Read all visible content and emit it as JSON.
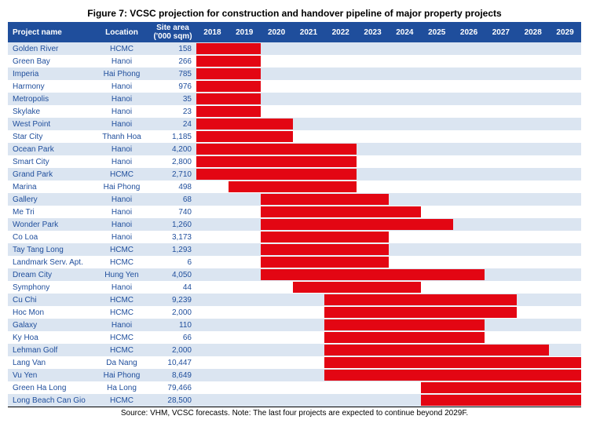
{
  "title": "Figure 7: VCSC projection for construction and handover pipeline of major property projects",
  "header": {
    "name": "Project name",
    "location": "Location",
    "area": "Site area ('000 sqm)"
  },
  "timeline": {
    "start": 2018,
    "end": 2029,
    "years": [
      2018,
      2019,
      2020,
      2021,
      2022,
      2023,
      2024,
      2025,
      2026,
      2027,
      2028,
      2029
    ]
  },
  "colors": {
    "header_bg": "#1f4e9c",
    "header_text": "#ffffff",
    "row_even_bg": "#dbe5f1",
    "row_odd_bg": "#ffffff",
    "bar_fill": "#e30613",
    "text": "#1f4e9c"
  },
  "projects": [
    {
      "name": "Golden River",
      "location": "HCMC",
      "area": "158",
      "start": 2018.0,
      "end": 2020.0
    },
    {
      "name": "Green Bay",
      "location": "Hanoi",
      "area": "266",
      "start": 2018.0,
      "end": 2020.0
    },
    {
      "name": "Imperia",
      "location": "Hai Phong",
      "area": "785",
      "start": 2018.0,
      "end": 2020.0
    },
    {
      "name": "Harmony",
      "location": "Hanoi",
      "area": "976",
      "start": 2018.0,
      "end": 2020.0
    },
    {
      "name": "Metropolis",
      "location": "Hanoi",
      "area": "35",
      "start": 2018.0,
      "end": 2020.0
    },
    {
      "name": "Skylake",
      "location": "Hanoi",
      "area": "23",
      "start": 2018.0,
      "end": 2020.0
    },
    {
      "name": "West Point",
      "location": "Hanoi",
      "area": "24",
      "start": 2018.0,
      "end": 2021.0
    },
    {
      "name": "Star City",
      "location": "Thanh Hoa",
      "area": "1,185",
      "start": 2018.0,
      "end": 2021.0
    },
    {
      "name": "Ocean Park",
      "location": "Hanoi",
      "area": "4,200",
      "start": 2018.0,
      "end": 2023.0
    },
    {
      "name": "Smart City",
      "location": "Hanoi",
      "area": "2,800",
      "start": 2018.0,
      "end": 2023.0
    },
    {
      "name": "Grand Park",
      "location": "HCMC",
      "area": "2,710",
      "start": 2018.0,
      "end": 2023.0
    },
    {
      "name": "Marina",
      "location": "Hai Phong",
      "area": "498",
      "start": 2019.0,
      "end": 2023.0
    },
    {
      "name": "Gallery",
      "location": "Hanoi",
      "area": "68",
      "start": 2020.0,
      "end": 2024.0
    },
    {
      "name": "Me Tri",
      "location": "Hanoi",
      "area": "740",
      "start": 2020.0,
      "end": 2025.0
    },
    {
      "name": "Wonder Park",
      "location": "Hanoi",
      "area": "1,260",
      "start": 2020.0,
      "end": 2026.0
    },
    {
      "name": "Co Loa",
      "location": "Hanoi",
      "area": "3,173",
      "start": 2020.0,
      "end": 2024.0
    },
    {
      "name": "Tay Tang Long",
      "location": "HCMC",
      "area": "1,293",
      "start": 2020.0,
      "end": 2024.0
    },
    {
      "name": "Landmark Serv. Apt.",
      "location": "HCMC",
      "area": "6",
      "start": 2020.0,
      "end": 2024.0
    },
    {
      "name": "Dream City",
      "location": "Hung Yen",
      "area": "4,050",
      "start": 2020.0,
      "end": 2027.0
    },
    {
      "name": "Symphony",
      "location": "Hanoi",
      "area": "44",
      "start": 2021.0,
      "end": 2025.0
    },
    {
      "name": "Cu Chi",
      "location": "HCMC",
      "area": "9,239",
      "start": 2022.0,
      "end": 2028.0
    },
    {
      "name": "Hoc Mon",
      "location": "HCMC",
      "area": "2,000",
      "start": 2022.0,
      "end": 2028.0
    },
    {
      "name": "Galaxy",
      "location": "Hanoi",
      "area": "110",
      "start": 2022.0,
      "end": 2027.0
    },
    {
      "name": "Ky Hoa",
      "location": "HCMC",
      "area": "66",
      "start": 2022.0,
      "end": 2027.0
    },
    {
      "name": "Lehman Golf",
      "location": "HCMC",
      "area": "2,000",
      "start": 2022.0,
      "end": 2029.0
    },
    {
      "name": "Lang Van",
      "location": "Da Nang",
      "area": "10,447",
      "start": 2022.0,
      "end": 2030.0
    },
    {
      "name": "Vu Yen",
      "location": "Hai Phong",
      "area": "8,649",
      "start": 2022.0,
      "end": 2030.0
    },
    {
      "name": "Green Ha Long",
      "location": "Ha Long",
      "area": "79,466",
      "start": 2025.0,
      "end": 2030.0
    },
    {
      "name": "Long Beach Can Gio",
      "location": "HCMC",
      "area": "28,500",
      "start": 2025.0,
      "end": 2030.0
    }
  ],
  "source": "Source: VHM, VCSC forecasts. Note: The last four projects are expected to continue beyond 2029F."
}
